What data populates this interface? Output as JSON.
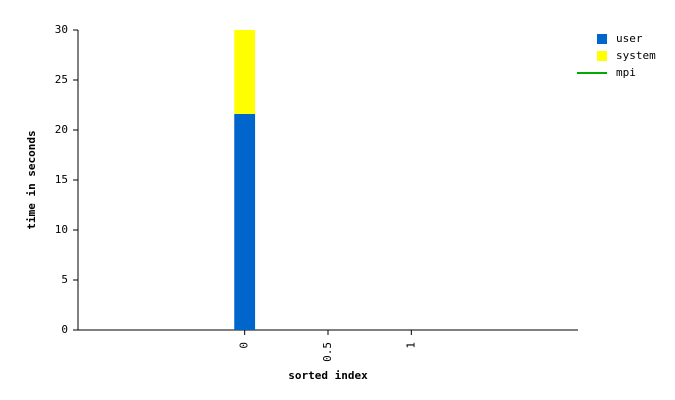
{
  "chart_data": {
    "type": "bar",
    "x": [
      0
    ],
    "series": [
      {
        "name": "user",
        "color": "#0066cc",
        "values": [
          21.6
        ]
      },
      {
        "name": "system",
        "color": "#ffff00",
        "values": [
          8.4
        ]
      },
      {
        "name": "mpi",
        "color": "#00aa00",
        "type": "line",
        "values": [
          null
        ]
      }
    ],
    "xlabel": "sorted index",
    "ylabel": "time in seconds",
    "xlim": [
      -1,
      2
    ],
    "xticks": [
      0,
      0.5,
      1
    ],
    "ylim": [
      0,
      30
    ],
    "yticks": [
      0,
      5,
      10,
      15,
      20,
      25,
      30
    ],
    "stacked": true,
    "grid": false,
    "legend": "upper right"
  }
}
